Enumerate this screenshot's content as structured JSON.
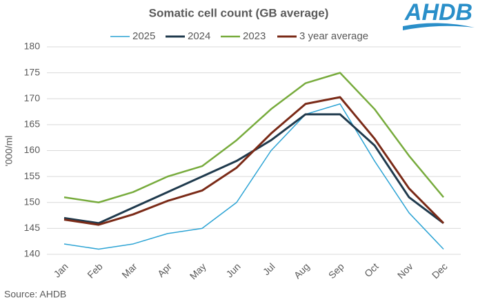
{
  "chart_data": {
    "type": "line",
    "title": "Somatic cell count (GB average)",
    "y_label": "'000/ml",
    "source": "Source: AHDB",
    "categories": [
      "Jan",
      "Feb",
      "Mar",
      "Apr",
      "May",
      "Jun",
      "Jul",
      "Aug",
      "Sep",
      "Oct",
      "Nov",
      "Dec"
    ],
    "series": [
      {
        "name": "2025",
        "color": "#2ba3d4",
        "width": 1.5,
        "values": [
          142,
          141,
          142,
          144,
          145,
          150,
          160,
          167,
          169,
          158,
          148,
          141
        ]
      },
      {
        "name": "2024",
        "color": "#1f3a4d",
        "width": 3,
        "values": [
          147,
          146,
          149,
          152,
          155,
          158,
          162,
          167,
          167,
          161,
          151,
          146
        ]
      },
      {
        "name": "2023",
        "color": "#77ab3c",
        "width": 2.5,
        "values": [
          151,
          150,
          152,
          155,
          157,
          162,
          168,
          173,
          175,
          168,
          159,
          151
        ]
      },
      {
        "name": "3 year average",
        "color": "#7a2a17",
        "width": 3,
        "values": [
          146.7,
          145.7,
          147.7,
          150.3,
          152.3,
          156.7,
          163.3,
          169,
          170.3,
          162.3,
          152.7,
          146
        ]
      }
    ],
    "ylim": [
      140,
      180
    ],
    "yticks": [
      140,
      145,
      150,
      155,
      160,
      165,
      170,
      175,
      180
    ],
    "grid": true,
    "legend": "top"
  },
  "logo": "AHDB"
}
